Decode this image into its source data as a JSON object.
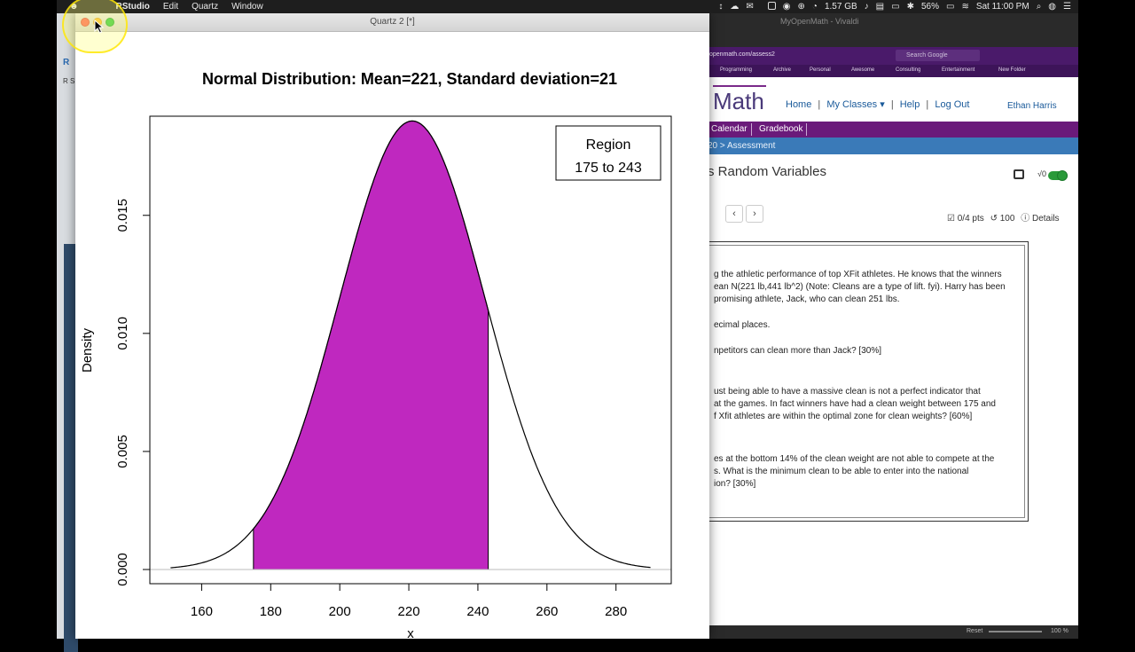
{
  "menubar": {
    "app": "RStudio",
    "menus": [
      "Edit",
      "Quartz",
      "Window"
    ],
    "memory": "1.57 GB",
    "battery": "56%",
    "clock": "Sat 11:00 PM"
  },
  "rstudio": {
    "frag1": "R",
    "frag2": "R S"
  },
  "quartz": {
    "title": "Quartz 2 [*]"
  },
  "chart_data": {
    "type": "area",
    "title": "Normal Distribution:  Mean=221, Standard deviation=21",
    "xlabel": "x",
    "ylabel": "Density",
    "mean": 221,
    "sd": 21,
    "x_range": [
      151,
      290
    ],
    "xlim": [
      145,
      296
    ],
    "ylim": [
      0,
      0.0198
    ],
    "x_ticks": [
      "160",
      "180",
      "200",
      "220",
      "240",
      "260",
      "280"
    ],
    "y_ticks": [
      "0.000",
      "0.005",
      "0.010",
      "0.015"
    ],
    "shaded_region": [
      175,
      243
    ],
    "fill_color": "#bf28bf",
    "legend": {
      "title": "Region",
      "text": "175 to 243",
      "position": "top-right"
    }
  },
  "browser": {
    "window_title": "MyOpenMath - Vivaldi",
    "url": "openmath.com/assess2",
    "search_placeholder": "Search Google",
    "bookmarks": [
      "Programming",
      "Archive",
      "Personal",
      "Awesome",
      "Consulting",
      "Entertainment",
      "New Folder"
    ],
    "logo": "Math",
    "nav": {
      "home": "Home",
      "classes": "My Classes ▾",
      "help": "Help",
      "logout": "Log Out"
    },
    "user": "Ethan Harris",
    "tabs": [
      "Calendar",
      "Gradebook"
    ],
    "breadcrumb": "20 > Assessment",
    "heading": "s Random Variables",
    "toggle_label": "√0",
    "prev": "‹",
    "next": "›",
    "points": "0/4 pts",
    "attempts": "100",
    "details": "Details",
    "question_lines": [
      "g the athletic performance of top XFit athletes. He knows that the winners",
      "ean N(221 lb,441 lb^2) (Note: Cleans are a type of lift. fyi). Harry has been",
      "promising athlete, Jack, who can clean 251 lbs.",
      "ecimal places.",
      "npetitors can clean more than Jack? [30%]",
      "ust being able to have a massive clean is not a perfect indicator that",
      "at the games. In fact winners have had a clean weight between 175 and",
      "f Xfit athletes are within the optimal zone for clean weights? [60%]",
      "es at the bottom 14% of the clean weight are not able to compete at the",
      "s. What is the minimum clean to be able to enter into the national",
      "ion? [30%]"
    ],
    "statusbar_reset": "Reset",
    "statusbar_zoom": "100 %"
  }
}
